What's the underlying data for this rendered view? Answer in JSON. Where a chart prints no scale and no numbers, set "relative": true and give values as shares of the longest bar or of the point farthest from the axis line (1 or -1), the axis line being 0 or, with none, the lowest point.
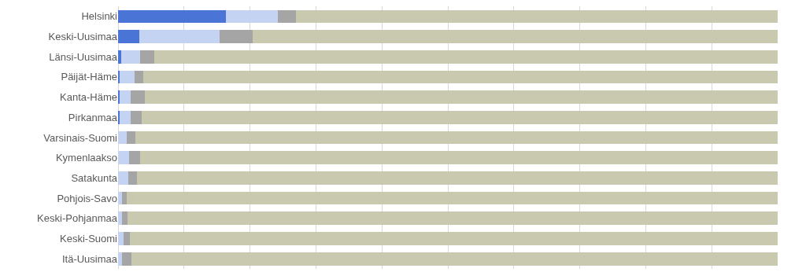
{
  "chart_data": {
    "type": "bar",
    "orientation": "horizontal",
    "stacked": true,
    "relative": true,
    "grid": "x",
    "categories": [
      "Helsinki",
      "Keski-Uusimaa",
      "Länsi-Uusimaa",
      "Päijät-Häme",
      "Kanta-Häme",
      "Pirkanmaa",
      "Varsinais-Suomi",
      "Kymenlaakso",
      "Satakunta",
      "Pohjois-Savo",
      "Keski-Pohjanmaa",
      "Keski-Suomi",
      "Itä-Uusimaa"
    ],
    "series": [
      {
        "color": "#4a74d6",
        "values": [
          0.164,
          0.032,
          0.005,
          0.002,
          0.002,
          0.002,
          0,
          0,
          0,
          0,
          0,
          0,
          0
        ]
      },
      {
        "color": "#c5d3f2",
        "values": [
          0.078,
          0.122,
          0.029,
          0.023,
          0.017,
          0.017,
          0.013,
          0.017,
          0.015,
          0.006,
          0.006,
          0.008,
          0.006
        ]
      },
      {
        "color": "#a5a5a5",
        "values": [
          0.028,
          0.05,
          0.021,
          0.013,
          0.022,
          0.017,
          0.013,
          0.017,
          0.014,
          0.007,
          0.008,
          0.01,
          0.014
        ]
      },
      {
        "color": "#c9c9b0",
        "values": [
          0.73,
          0.796,
          0.945,
          0.962,
          0.959,
          0.964,
          0.974,
          0.966,
          0.971,
          0.987,
          0.986,
          0.982,
          0.98
        ]
      }
    ]
  }
}
